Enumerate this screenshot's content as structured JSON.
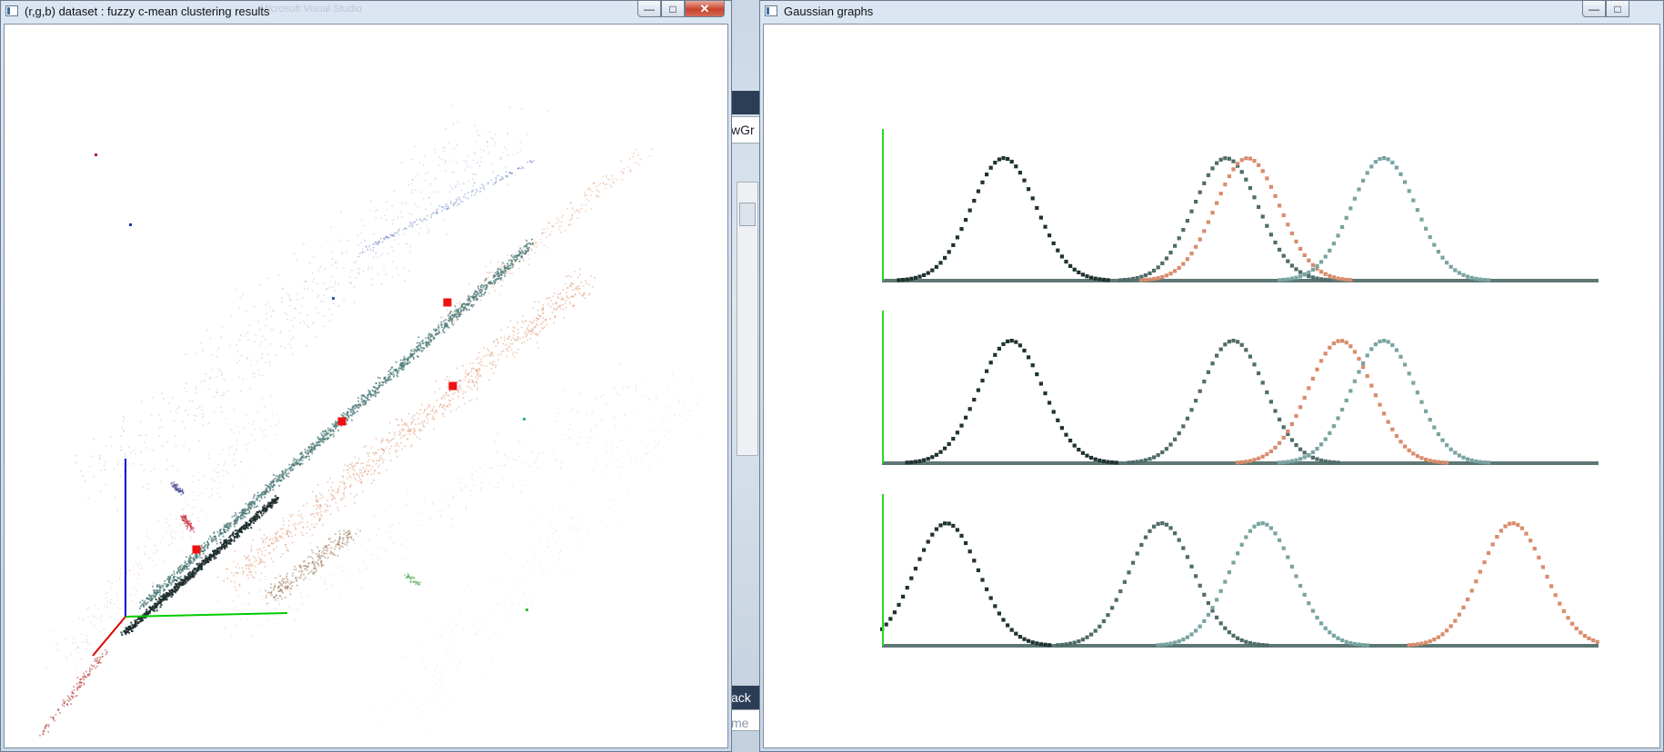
{
  "left_window": {
    "title": "(r,g,b) dataset : fuzzy c-mean clustering results",
    "ghost_title": "Microsoft Visual Studio",
    "controls": {
      "minimize": "—",
      "maximize": "□",
      "close": "✕"
    },
    "colors": {
      "x_axis": "#e00000",
      "y_axis": "#00cc00",
      "z_axis": "#0000cc",
      "cluster_center": "#ee1111",
      "dark_cluster": "#1e2f2f",
      "teal_cluster": "#4d7b7a",
      "orange_cluster": "#d9865c"
    }
  },
  "right_window": {
    "title": "Gaussian graphs",
    "controls": {
      "minimize": "—",
      "maximize": "□"
    },
    "colors": {
      "series_dark": "#1f3331",
      "series_slate": "#4f6c68",
      "series_orange": "#d98c6c",
      "series_teal": "#79a4a2",
      "baseline": "#5d7774",
      "vertical_axis": "#22dd22"
    },
    "panels": [
      {
        "means": [
          0.17,
          0.48,
          0.51,
          0.7
        ],
        "order": [
          "series_dark",
          "series_slate",
          "series_orange",
          "series_teal"
        ]
      },
      {
        "means": [
          0.18,
          0.49,
          0.64,
          0.7
        ],
        "order": [
          "series_dark",
          "series_slate",
          "series_orange",
          "series_teal"
        ]
      },
      {
        "means": [
          0.09,
          0.39,
          0.53,
          0.88
        ],
        "order": [
          "series_dark",
          "series_slate",
          "series_teal",
          "series_orange"
        ]
      }
    ]
  },
  "background_app": {
    "fragment_1": "wGr",
    "fragment_2": "ack",
    "fragment_3": "me"
  }
}
